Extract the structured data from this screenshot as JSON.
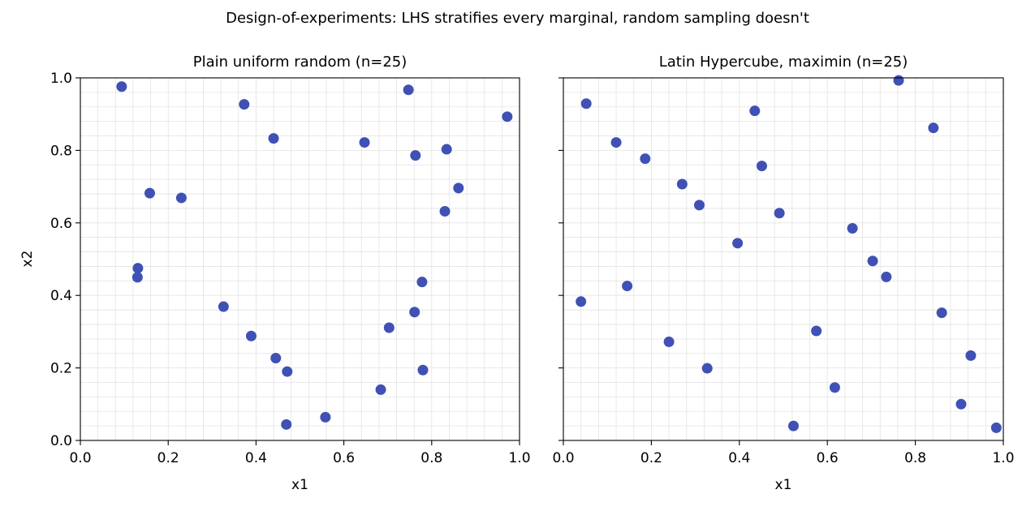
{
  "chart_data": {
    "title": "Design-of-experiments: LHS stratifies every marginal, random sampling doesn't",
    "type": "scatter",
    "grid": true,
    "marker_color": "#3f51b5",
    "panels": [
      {
        "title": "Plain uniform random (n=25)",
        "xlabel": "x1",
        "ylabel": "x2",
        "xlim": [
          0.0,
          1.0
        ],
        "ylim": [
          0.0,
          1.0
        ],
        "x_ticks": [
          "0.0",
          "0.2",
          "0.4",
          "0.6",
          "0.8",
          "1.0"
        ],
        "y_ticks": [
          "0.0",
          "0.2",
          "0.4",
          "0.6",
          "0.8",
          "1.0"
        ],
        "points": [
          [
            0.094,
            0.976
          ],
          [
            0.373,
            0.927
          ],
          [
            0.44,
            0.833
          ],
          [
            0.647,
            0.822
          ],
          [
            0.747,
            0.967
          ],
          [
            0.972,
            0.893
          ],
          [
            0.763,
            0.786
          ],
          [
            0.834,
            0.803
          ],
          [
            0.158,
            0.682
          ],
          [
            0.23,
            0.669
          ],
          [
            0.861,
            0.696
          ],
          [
            0.83,
            0.632
          ],
          [
            0.131,
            0.475
          ],
          [
            0.13,
            0.45
          ],
          [
            0.778,
            0.437
          ],
          [
            0.326,
            0.369
          ],
          [
            0.761,
            0.354
          ],
          [
            0.703,
            0.311
          ],
          [
            0.389,
            0.288
          ],
          [
            0.445,
            0.227
          ],
          [
            0.471,
            0.19
          ],
          [
            0.78,
            0.194
          ],
          [
            0.684,
            0.14
          ],
          [
            0.558,
            0.064
          ],
          [
            0.469,
            0.044
          ]
        ]
      },
      {
        "title": "Latin Hypercube, maximin (n=25)",
        "xlabel": "x1",
        "ylabel": "",
        "xlim": [
          0.0,
          1.0
        ],
        "ylim": [
          0.0,
          1.0
        ],
        "x_ticks": [
          "0.0",
          "0.2",
          "0.4",
          "0.6",
          "0.8",
          "1.0"
        ],
        "y_ticks": [],
        "points": [
          [
            0.052,
            0.929
          ],
          [
            0.12,
            0.822
          ],
          [
            0.186,
            0.777
          ],
          [
            0.27,
            0.707
          ],
          [
            0.309,
            0.649
          ],
          [
            0.435,
            0.909
          ],
          [
            0.451,
            0.757
          ],
          [
            0.491,
            0.627
          ],
          [
            0.396,
            0.544
          ],
          [
            0.762,
            0.993
          ],
          [
            0.841,
            0.862
          ],
          [
            0.657,
            0.585
          ],
          [
            0.703,
            0.495
          ],
          [
            0.734,
            0.451
          ],
          [
            0.04,
            0.383
          ],
          [
            0.145,
            0.426
          ],
          [
            0.86,
            0.352
          ],
          [
            0.575,
            0.302
          ],
          [
            0.24,
            0.272
          ],
          [
            0.327,
            0.199
          ],
          [
            0.926,
            0.234
          ],
          [
            0.617,
            0.146
          ],
          [
            0.904,
            0.1
          ],
          [
            0.523,
            0.04
          ],
          [
            0.984,
            0.035
          ]
        ]
      }
    ]
  }
}
